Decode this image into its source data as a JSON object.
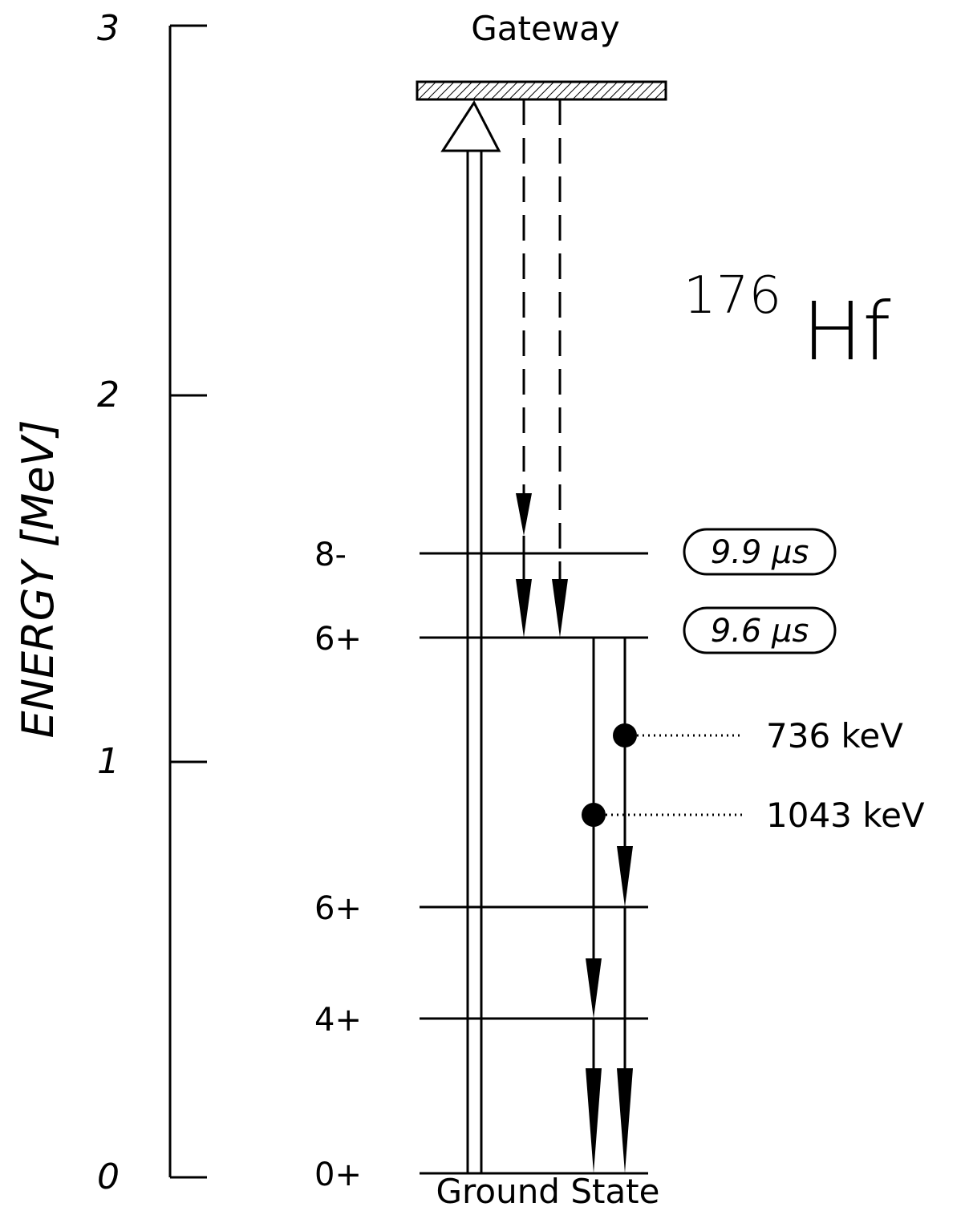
{
  "axis": {
    "title": "ENERGY [MeV]",
    "ticks": [
      "0",
      "1",
      "2",
      "3"
    ]
  },
  "gateway_label": "Gateway",
  "ground_state_label": "Ground State",
  "nucleus": {
    "mass_number": "176",
    "element": "Hf"
  },
  "levels": [
    {
      "spin": "0+",
      "energy_mev": 0.0
    },
    {
      "spin": "4+",
      "energy_mev": 0.35
    },
    {
      "spin": "6+",
      "energy_mev": 0.645
    },
    {
      "spin": "6+",
      "energy_mev": 1.38
    },
    {
      "spin": "8-",
      "energy_mev": 1.61
    }
  ],
  "lifetimes": [
    {
      "text": "9.9 μs",
      "level_spin": "8-"
    },
    {
      "text": "9.6 μs",
      "level_spin": "6+"
    }
  ],
  "gamma_lines": [
    {
      "text": "736 keV"
    },
    {
      "text": "1043 keV"
    }
  ],
  "colors": {
    "ink": "#000000",
    "background": "#ffffff"
  }
}
